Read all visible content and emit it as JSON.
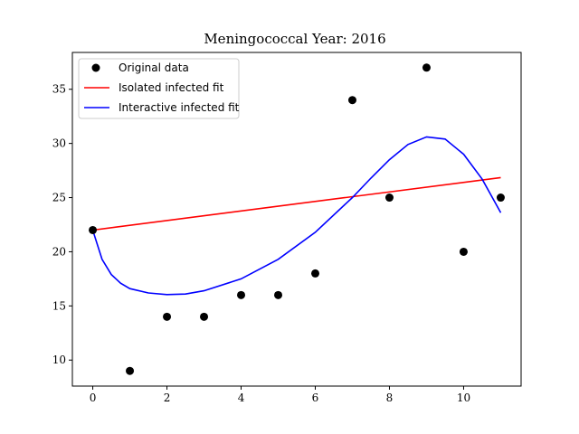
{
  "chart_data": {
    "type": "scatter",
    "title": "Meningococcal Year: 2016",
    "xlabel": "",
    "ylabel": "",
    "xlim": [
      -0.55,
      11.55
    ],
    "ylim": [
      7.6,
      38.4
    ],
    "xticks": [
      0,
      2,
      4,
      6,
      8,
      10
    ],
    "yticks": [
      10,
      15,
      20,
      25,
      30,
      35
    ],
    "grid": false,
    "legend_position": "top-left",
    "series": [
      {
        "name": "Original data",
        "kind": "markers",
        "color": "#000000",
        "x": [
          0,
          1,
          2,
          3,
          4,
          5,
          6,
          7,
          8,
          9,
          10,
          11
        ],
        "y": [
          22,
          9,
          14,
          14,
          16,
          16,
          18,
          34,
          25,
          37,
          20,
          25
        ]
      },
      {
        "name": "Isolated infected fit",
        "kind": "line",
        "color": "#ff0000",
        "x": [
          0,
          11
        ],
        "y": [
          22.0,
          26.85
        ]
      },
      {
        "name": "Interactive infected fit",
        "kind": "line",
        "color": "#0000ff",
        "x": [
          0,
          0.25,
          0.5,
          0.75,
          1,
          1.5,
          2,
          2.5,
          3,
          4,
          5,
          6,
          7,
          7.5,
          8,
          8.5,
          9,
          9.5,
          10,
          10.5,
          11
        ],
        "y": [
          22.0,
          19.3,
          17.9,
          17.1,
          16.6,
          16.2,
          16.05,
          16.1,
          16.4,
          17.5,
          19.3,
          21.8,
          25.0,
          26.8,
          28.5,
          29.9,
          30.6,
          30.4,
          29.0,
          26.7,
          23.6
        ]
      }
    ]
  }
}
